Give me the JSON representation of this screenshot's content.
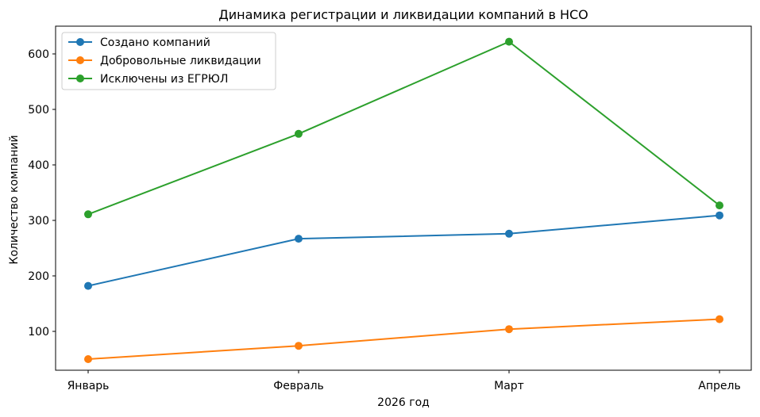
{
  "chart_data": {
    "type": "line",
    "title": "Динамика регистрации и ликвидации компаний в НСО",
    "xlabel": "2026 год",
    "ylabel": "Количество компаний",
    "categories": [
      "Январь",
      "Февраль",
      "Март",
      "Апрель"
    ],
    "ylim": [
      30,
      650
    ],
    "yticks": [
      100,
      200,
      300,
      400,
      500,
      600
    ],
    "grid": false,
    "legend_position": "top-left",
    "series": [
      {
        "name": "Создано компаний",
        "color": "#1f77b4",
        "values": [
          182,
          267,
          276,
          309
        ]
      },
      {
        "name": "Добровольные ликвидации",
        "color": "#ff7f0e",
        "values": [
          50,
          74,
          104,
          122
        ]
      },
      {
        "name": "Исключены из ЕГРЮЛ",
        "color": "#2ca02c",
        "values": [
          311,
          456,
          622,
          327
        ]
      }
    ]
  }
}
